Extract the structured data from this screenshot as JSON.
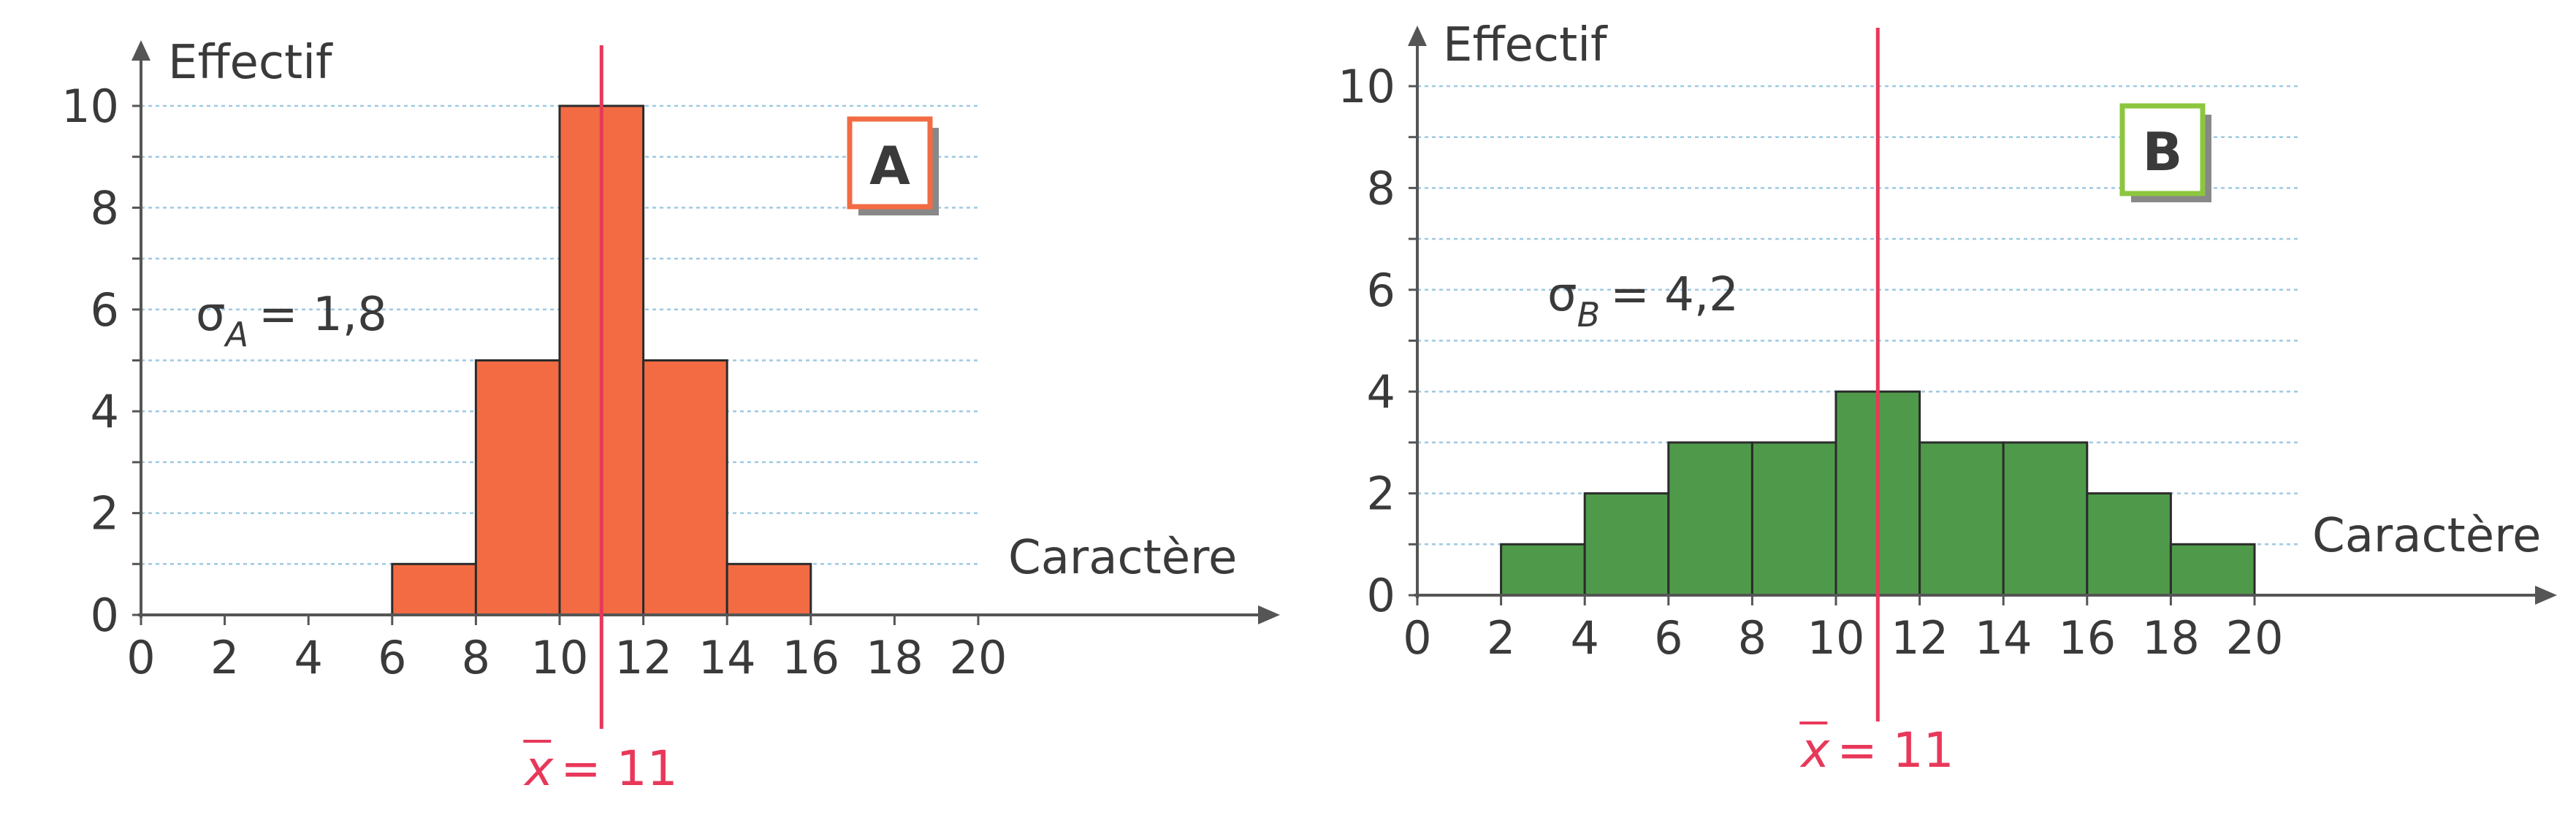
{
  "chart_data": [
    {
      "type": "histogram",
      "panel_label": "A",
      "ylabel": "Effectif",
      "xlabel": "Caractère",
      "x_ticks": [
        0,
        2,
        4,
        6,
        8,
        10,
        12,
        14,
        16,
        18,
        20
      ],
      "y_ticks": [
        0,
        2,
        4,
        6,
        8,
        10
      ],
      "xlim": [
        0,
        20
      ],
      "ylim": [
        0,
        10
      ],
      "bin_edges": [
        6,
        8,
        10,
        12,
        14,
        16
      ],
      "values": [
        1,
        5,
        10,
        5,
        1
      ],
      "bar_color": "#f26b43",
      "frame_color": "#f26b43",
      "mean_value": 11,
      "mean_label": {
        "x": "x",
        "eq": "= 11"
      },
      "sigma_label": {
        "sym": "σ",
        "sub": "A",
        "eq": "= 1,8"
      }
    },
    {
      "type": "histogram",
      "panel_label": "B",
      "ylabel": "Effectif",
      "xlabel": "Caractère",
      "x_ticks": [
        0,
        2,
        4,
        6,
        8,
        10,
        12,
        14,
        16,
        18,
        20
      ],
      "y_ticks": [
        0,
        2,
        4,
        6,
        8,
        10
      ],
      "xlim": [
        0,
        20
      ],
      "ylim": [
        0,
        10
      ],
      "bin_edges": [
        2,
        4,
        6,
        8,
        10,
        12,
        14,
        16,
        18,
        20
      ],
      "values": [
        1,
        2,
        3,
        3,
        4,
        3,
        3,
        2,
        1
      ],
      "bar_color": "#4f9a4a",
      "frame_color": "#8cc63f",
      "mean_value": 11,
      "mean_label": {
        "x": "x",
        "eq": "= 11"
      },
      "sigma_label": {
        "sym": "σ",
        "sub": "B",
        "eq": "= 4,2"
      }
    }
  ],
  "colors": {
    "axis": "#555555",
    "grid": "#9ec9e2",
    "mean_line": "#e8385a",
    "text": "#3a3a3a"
  }
}
